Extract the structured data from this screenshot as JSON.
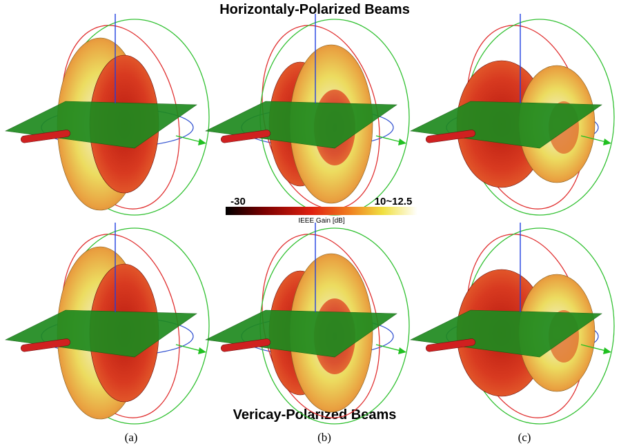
{
  "titles": {
    "top": "Horizontaly-Polarized Beams",
    "bottom": "Vericay-Polarized Beams"
  },
  "colorbar": {
    "min_label": "-30",
    "max_label": "10~12.5",
    "title": "IEEE Gain [dB]"
  },
  "panels": [
    {
      "label": "(a)"
    },
    {
      "label": "(b)"
    },
    {
      "label": "(c)"
    }
  ]
}
